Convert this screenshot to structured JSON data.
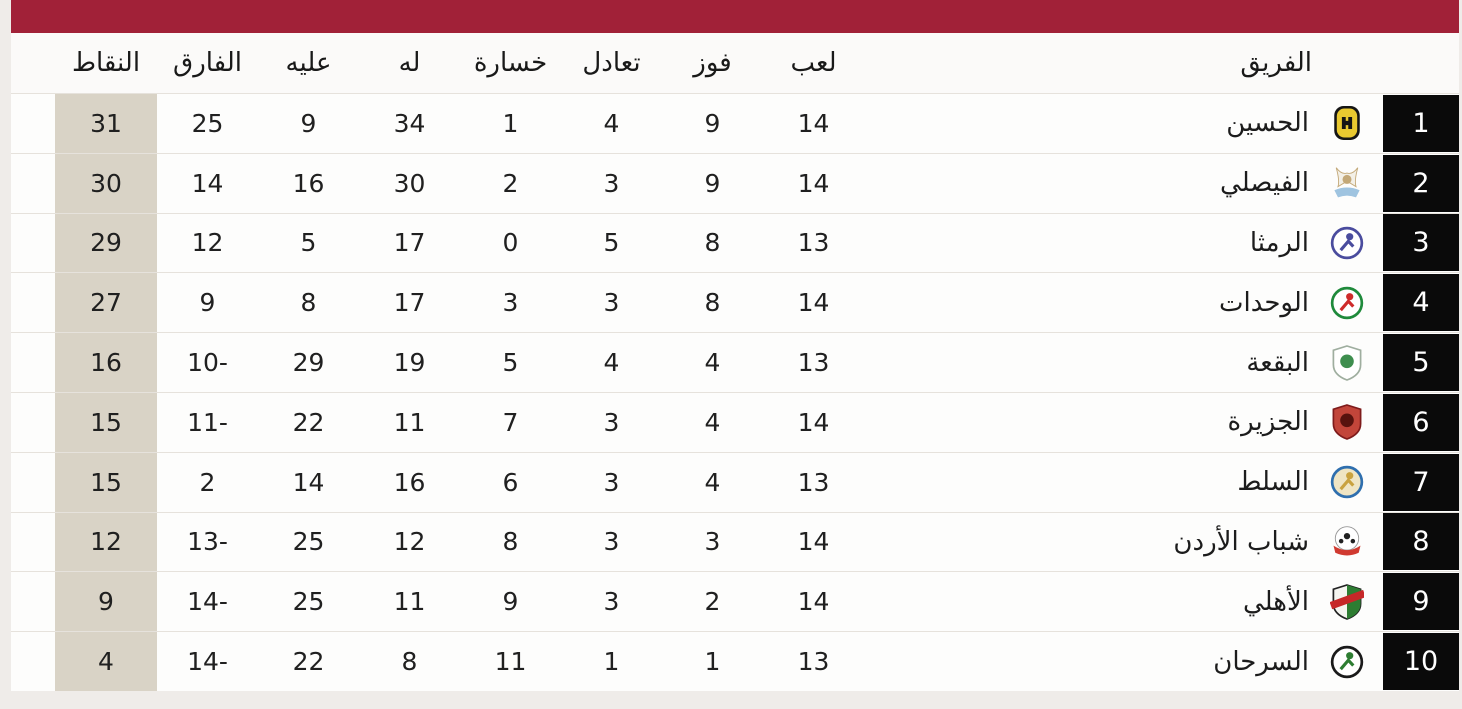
{
  "page": {
    "background": "#EFECE9"
  },
  "title_bar": {
    "color": "#A12138"
  },
  "table": {
    "points_column_bg": "#D9D3C6",
    "rank_box_bg": "#0A0A0A",
    "columns": [
      {
        "key": "team",
        "label": "الفريق"
      },
      {
        "key": "played",
        "label": "لعب"
      },
      {
        "key": "wins",
        "label": "فوز"
      },
      {
        "key": "draws",
        "label": "تعادل"
      },
      {
        "key": "losses",
        "label": "خسارة"
      },
      {
        "key": "goals_for",
        "label": "له"
      },
      {
        "key": "goals_against",
        "label": "عليه"
      },
      {
        "key": "goal_diff",
        "label": "الفارق"
      },
      {
        "key": "points",
        "label": "النقاط"
      }
    ],
    "rows": [
      {
        "rank": 1,
        "team": "الحسين",
        "played": 14,
        "wins": 9,
        "draws": 4,
        "losses": 1,
        "goals_for": 34,
        "goals_against": 9,
        "goal_diff": 25,
        "points": 31,
        "badge": {
          "icon": "al-hussein-badge",
          "shape": "square",
          "colors": [
            "#151515",
            "#E9C930",
            "#151515"
          ]
        }
      },
      {
        "rank": 2,
        "team": "الفيصلي",
        "played": 14,
        "wins": 9,
        "draws": 3,
        "losses": 2,
        "goals_for": 30,
        "goals_against": 16,
        "goal_diff": 14,
        "points": 30,
        "badge": {
          "icon": "al-faisaly-badge",
          "shape": "eagle",
          "colors": [
            "#F3F0E7",
            "#9FC4E0",
            "#C3A877"
          ]
        }
      },
      {
        "rank": 3,
        "team": "الرمثا",
        "played": 13,
        "wins": 8,
        "draws": 5,
        "losses": 0,
        "goals_for": 17,
        "goals_against": 5,
        "goal_diff": 12,
        "points": 29,
        "badge": {
          "icon": "al-ramtha-badge",
          "shape": "circle",
          "colors": [
            "#FFFFFF",
            "#4A4C9E",
            "#4A4C9E"
          ]
        }
      },
      {
        "rank": 4,
        "team": "الوحدات",
        "played": 14,
        "wins": 8,
        "draws": 3,
        "losses": 3,
        "goals_for": 17,
        "goals_against": 8,
        "goal_diff": 9,
        "points": 27,
        "badge": {
          "icon": "al-wehdat-badge",
          "shape": "circle",
          "colors": [
            "#FFFFFF",
            "#1F8A3B",
            "#CE2B2B"
          ]
        }
      },
      {
        "rank": 5,
        "team": "البقعة",
        "played": 13,
        "wins": 4,
        "draws": 4,
        "losses": 5,
        "goals_for": 19,
        "goals_against": 29,
        "goal_diff": -10,
        "points": 16,
        "badge": {
          "icon": "al-baqaa-badge",
          "shape": "shield",
          "colors": [
            "#FFFFFF",
            "#9FAE9F",
            "#3E8E4E"
          ]
        }
      },
      {
        "rank": 6,
        "team": "الجزيرة",
        "played": 14,
        "wins": 4,
        "draws": 3,
        "losses": 7,
        "goals_for": 11,
        "goals_against": 22,
        "goal_diff": -11,
        "points": 15,
        "badge": {
          "icon": "al-jazeera-badge",
          "shape": "shield",
          "colors": [
            "#C2453A",
            "#7E1B1B",
            "#57120E"
          ]
        }
      },
      {
        "rank": 7,
        "team": "السلط",
        "played": 13,
        "wins": 4,
        "draws": 3,
        "losses": 6,
        "goals_for": 16,
        "goals_against": 14,
        "goal_diff": 2,
        "points": 15,
        "badge": {
          "icon": "al-salt-badge",
          "shape": "circle",
          "colors": [
            "#EFE5C4",
            "#2F6FAE",
            "#C9A23F"
          ]
        }
      },
      {
        "rank": 8,
        "team": "شباب الأردن",
        "played": 14,
        "wins": 3,
        "draws": 3,
        "losses": 8,
        "goals_for": 12,
        "goals_against": 25,
        "goal_diff": -13,
        "points": 12,
        "badge": {
          "icon": "shabab-al-ordon-badge",
          "shape": "ball",
          "colors": [
            "#FFFFFF",
            "#D03A30",
            "#222222"
          ]
        }
      },
      {
        "rank": 9,
        "team": "الأهلي",
        "played": 14,
        "wins": 2,
        "draws": 3,
        "losses": 9,
        "goals_for": 11,
        "goals_against": 25,
        "goal_diff": -14,
        "points": 9,
        "badge": {
          "icon": "al-ahli-badge",
          "shape": "shield-band",
          "colors": [
            "#2E7D32",
            "#F5F5F0",
            "#C62828"
          ]
        }
      },
      {
        "rank": 10,
        "team": "السرحان",
        "played": 13,
        "wins": 1,
        "draws": 1,
        "losses": 11,
        "goals_for": 8,
        "goals_against": 22,
        "goal_diff": -14,
        "points": 4,
        "badge": {
          "icon": "al-sarhan-badge",
          "shape": "circle",
          "colors": [
            "#FFFFFF",
            "#1A1A1A",
            "#2E7D32"
          ]
        }
      }
    ]
  }
}
